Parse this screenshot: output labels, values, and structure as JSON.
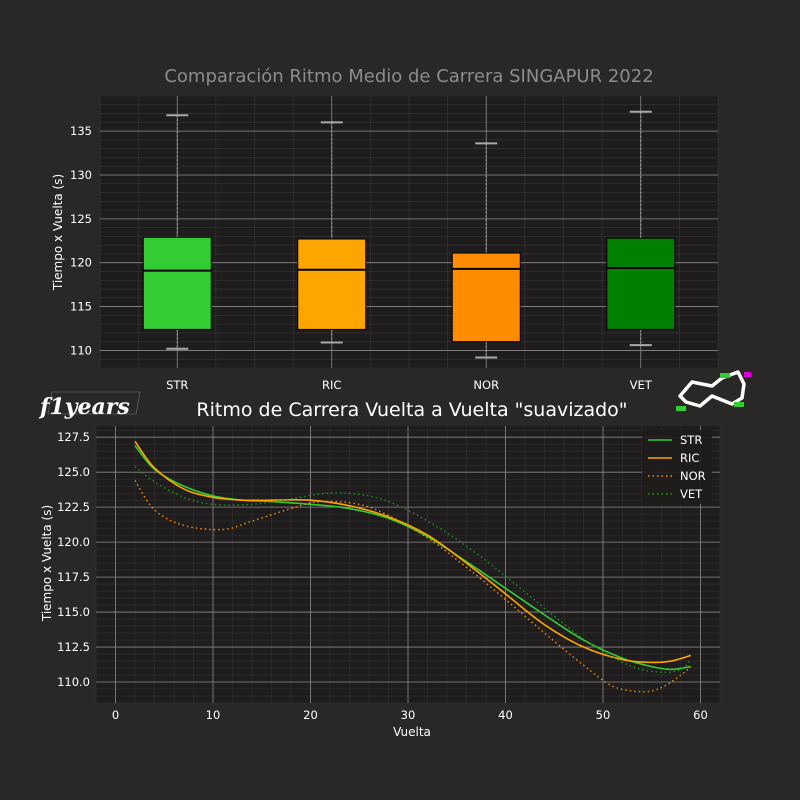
{
  "chart_data": [
    {
      "type": "box",
      "title": "Comparación Ritmo Medio de Carrera SINGAPUR 2022",
      "ylabel": "Tiempo x Vuelta (s)",
      "ylim": [
        108,
        139
      ],
      "yticks": [
        110,
        115,
        120,
        125,
        130,
        135
      ],
      "grid": true,
      "boxes": [
        {
          "name": "STR",
          "color": "#33cc33",
          "whisker_low": 110.2,
          "q1": 112.4,
          "median": 119.1,
          "q3": 122.9,
          "whisker_high": 136.8
        },
        {
          "name": "RIC",
          "color": "#ffa500",
          "whisker_low": 110.9,
          "q1": 112.4,
          "median": 119.2,
          "q3": 122.7,
          "whisker_high": 136.0
        },
        {
          "name": "NOR",
          "color": "#ff8c00",
          "whisker_low": 109.2,
          "q1": 111.0,
          "median": 119.3,
          "q3": 121.1,
          "whisker_high": 133.6
        },
        {
          "name": "VET",
          "color": "#008000",
          "whisker_low": 110.6,
          "q1": 112.4,
          "median": 119.4,
          "q3": 122.8,
          "whisker_high": 137.2
        }
      ]
    },
    {
      "type": "line",
      "title": "Ritmo de Carrera Vuelta a Vuelta \"suavizado\"",
      "xlabel": "Vuelta",
      "ylabel": "Tiempo x Vuelta (s)",
      "xlim": [
        -2,
        62
      ],
      "ylim": [
        108.5,
        128.3
      ],
      "xticks": [
        0,
        10,
        20,
        30,
        40,
        50,
        60
      ],
      "yticks": [
        110.0,
        112.5,
        115.0,
        117.5,
        120.0,
        122.5,
        125.0,
        127.5
      ],
      "ytick_labels": [
        "110.0",
        "112.5",
        "115.0",
        "117.5",
        "120.0",
        "122.5",
        "125.0",
        "127.5"
      ],
      "grid": true,
      "legend": "top-right",
      "series": [
        {
          "name": "STR",
          "color": "#33cc33",
          "dash": "solid",
          "x": [
            2,
            4,
            7,
            10,
            13,
            16,
            20,
            24,
            28,
            32,
            36,
            40,
            44,
            48,
            52,
            55,
            57,
            59
          ],
          "y": [
            126.9,
            125.2,
            124.0,
            123.3,
            123.0,
            122.9,
            122.7,
            122.4,
            121.7,
            120.4,
            118.6,
            116.7,
            114.8,
            113.0,
            111.7,
            111.1,
            110.9,
            111.1
          ]
        },
        {
          "name": "RIC",
          "color": "#ffa500",
          "dash": "solid",
          "x": [
            2,
            4,
            7,
            10,
            13,
            16,
            20,
            24,
            28,
            32,
            36,
            40,
            44,
            48,
            52,
            55,
            57,
            59
          ],
          "y": [
            127.2,
            125.3,
            123.8,
            123.2,
            123.0,
            123.0,
            123.0,
            122.6,
            121.8,
            120.5,
            118.5,
            116.3,
            114.1,
            112.5,
            111.6,
            111.4,
            111.5,
            111.9
          ]
        },
        {
          "name": "NOR",
          "color": "#ff8c00",
          "dash": "dotted",
          "x": [
            2,
            4,
            7,
            11,
            14,
            18,
            21,
            25,
            28,
            32,
            36,
            40,
            44,
            48,
            51,
            54,
            56,
            58,
            59
          ],
          "y": [
            124.4,
            122.3,
            121.2,
            120.9,
            121.5,
            122.4,
            122.9,
            122.7,
            121.9,
            120.3,
            118.2,
            115.9,
            113.5,
            111.2,
            109.7,
            109.3,
            109.6,
            110.5,
            111.1
          ]
        },
        {
          "name": "VET",
          "color": "#1a9a1a",
          "dash": "dotted",
          "x": [
            2,
            4,
            7,
            10,
            14,
            18,
            22,
            26,
            29,
            33,
            37,
            41,
            45,
            49,
            53,
            56,
            58,
            59
          ],
          "y": [
            125.4,
            124.3,
            123.2,
            122.7,
            122.7,
            123.1,
            123.5,
            123.3,
            122.6,
            121.1,
            119.2,
            117.0,
            114.7,
            112.6,
            111.1,
            110.7,
            110.9,
            111.6
          ]
        }
      ]
    }
  ],
  "logo_text": "f1years"
}
